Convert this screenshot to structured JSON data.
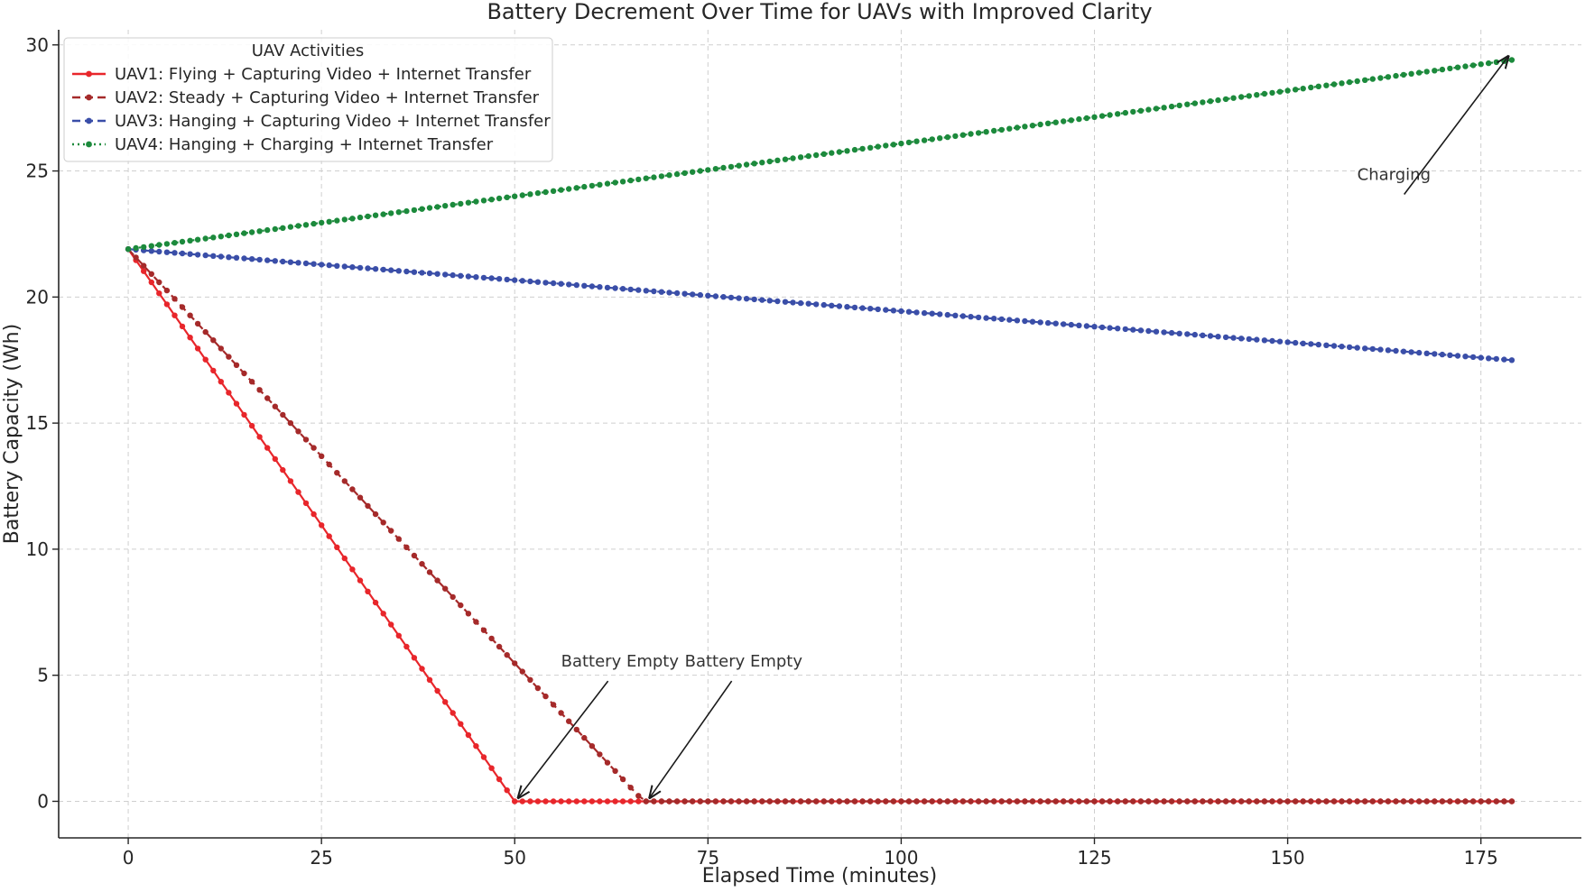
{
  "chart_data": {
    "type": "line",
    "title": "Battery Decrement Over Time for UAVs with Improved Clarity",
    "xlabel": "Elapsed Time (minutes)",
    "ylabel": "Battery Capacity (Wh)",
    "xlim": [
      -9,
      188
    ],
    "ylim": [
      -1.45,
      30.6
    ],
    "xticks": [
      0,
      25,
      50,
      75,
      100,
      125,
      150,
      175
    ],
    "yticks": [
      0,
      5,
      10,
      15,
      20,
      25,
      30
    ],
    "grid": true,
    "legend": {
      "title": "UAV Activities",
      "placement": "top-left"
    },
    "x_step": 1,
    "series": [
      {
        "name": "UAV1: Flying + Capturing Video + Internet Transfer",
        "color": "#e8262b",
        "linestyle": "solid",
        "marker": "circle",
        "x_start": 0,
        "x_end": 179,
        "y_start": 21.9,
        "rate_per_min": -0.438,
        "floor": 0
      },
      {
        "name": "UAV2: Steady + Capturing Video + Internet Transfer",
        "color": "#a52a2a",
        "linestyle": "dashed",
        "marker": "circle",
        "x_start": 0,
        "x_end": 179,
        "y_start": 21.9,
        "rate_per_min": -0.3285,
        "floor": 0
      },
      {
        "name": "UAV3: Hanging + Capturing Video + Internet Transfer",
        "color": "#3a4ea8",
        "linestyle": "dashed",
        "marker": "circle",
        "x_start": 0,
        "x_end": 179,
        "y_start": 21.9,
        "rate_per_min": -0.0246,
        "floor": 0
      },
      {
        "name": "UAV4: Hanging + Charging + Internet Transfer",
        "color": "#1c8a3c",
        "linestyle": "dotted",
        "marker": "circle",
        "x_start": 0,
        "x_end": 179,
        "y_start": 21.9,
        "rate_per_min": 0.0419,
        "floor": 0
      }
    ],
    "annotations": [
      {
        "text": "Battery Empty",
        "xy": [
          50,
          0
        ],
        "xytext": [
          56,
          5.2
        ]
      },
      {
        "text": "Battery Empty",
        "xy": [
          67,
          0
        ],
        "xytext": [
          72,
          5.2
        ]
      },
      {
        "text": "Charging",
        "xy": [
          179,
          29.4
        ],
        "xytext": [
          159,
          24.5
        ]
      }
    ]
  }
}
